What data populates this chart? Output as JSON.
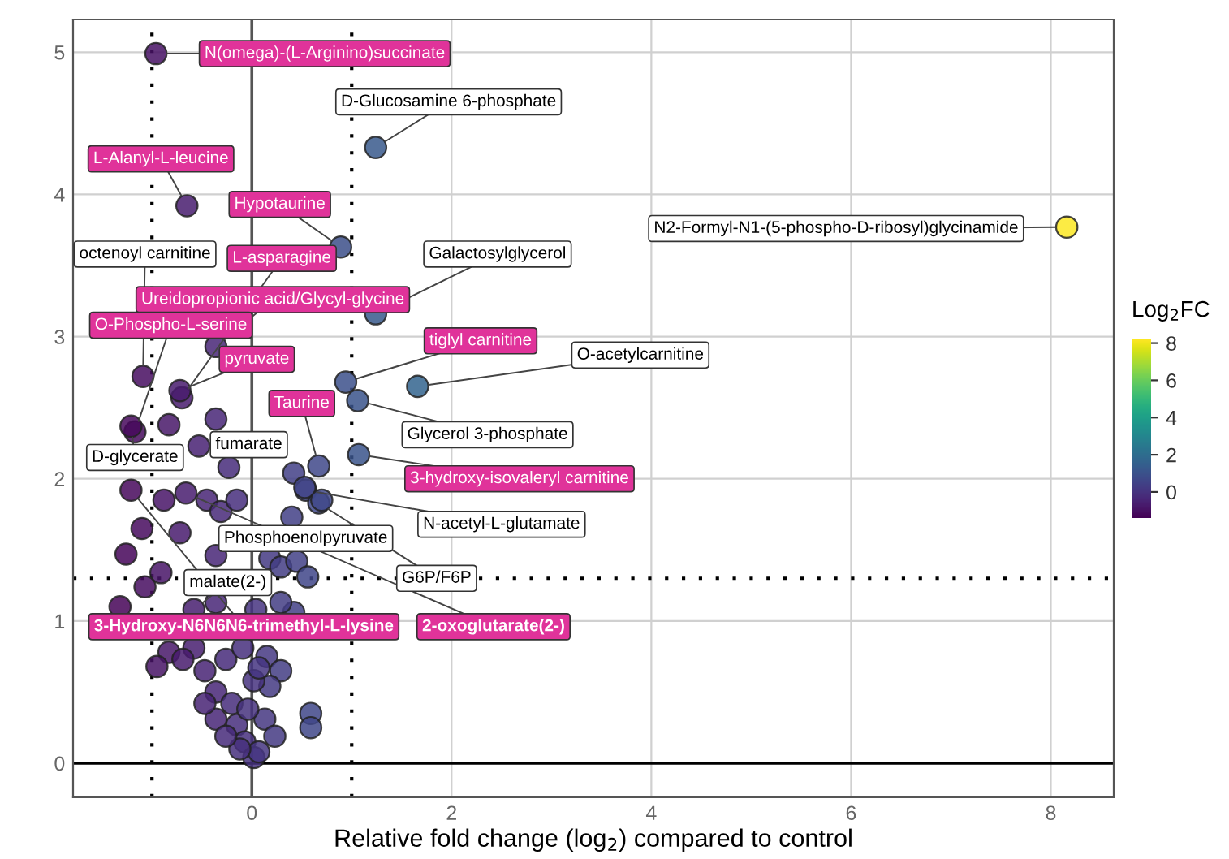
{
  "chart_data": {
    "type": "scatter",
    "xlabel": "Relative fold change (log$_{2}$) compared to control",
    "clabel": "Log$_{2}$FC",
    "xlim": [
      -1.79,
      8.63
    ],
    "ylim": [
      -0.24,
      5.23
    ],
    "xticks": [
      0,
      2,
      4,
      6,
      8
    ],
    "yticks": [
      0,
      1,
      2,
      3,
      4,
      5
    ],
    "clim": [
      -1.4,
      8.2
    ],
    "cticks": [
      0,
      2,
      4,
      6,
      8
    ],
    "grid": true,
    "marker": "circle",
    "ref_lines": [
      {
        "axis": "x",
        "value": -1,
        "line_style": "dotted",
        "color": "#000000"
      },
      {
        "axis": "x",
        "value": 1,
        "line_style": "dotted",
        "color": "#000000"
      },
      {
        "axis": "y",
        "value": 1.3,
        "line_style": "dotted",
        "color": "#000000"
      },
      {
        "axis": "x",
        "value": 0,
        "line_style": "solid",
        "color": "#555555"
      },
      {
        "axis": "y",
        "value": 0,
        "line_style": "solid",
        "color": "#000000"
      }
    ],
    "series": [
      {
        "x": [
          -0.96,
          1.24,
          -0.65,
          0.89,
          -0.7,
          -1.09,
          1.24,
          -0.36,
          -1.17,
          -0.72,
          0.94,
          1.66,
          0.67,
          1.06,
          1.07,
          0.54,
          0.67,
          -0.53,
          0.4,
          -0.58,
          -1.21,
          -0.66,
          8.16,
          -1.21,
          -1.1,
          -1.26,
          -0.91,
          -1.07,
          -1.32,
          -0.83,
          -0.95,
          -0.88,
          -0.72,
          -0.45,
          -0.31,
          -0.15,
          -0.23,
          -0.36,
          -0.83,
          0.42,
          0.53,
          0.7,
          0.18,
          0.29,
          0.45,
          0.56,
          -0.36,
          -0.36,
          0.42,
          0.29,
          -0.58,
          -0.69,
          -0.47,
          -0.26,
          -0.09,
          0.15,
          0.29,
          0.18,
          0.02,
          -0.36,
          -0.2,
          -0.36,
          -0.15,
          0.13,
          0.23,
          -0.07,
          0.02,
          0.07,
          -0.12,
          0.59,
          0.59,
          -0.26,
          -0.04,
          -0.47,
          0.07,
          0.04
        ],
        "values": [
          4.99,
          4.33,
          3.92,
          3.63,
          2.57,
          2.72,
          3.16,
          2.93,
          2.33,
          2.62,
          2.68,
          2.65,
          2.09,
          2.55,
          2.17,
          1.92,
          1.83,
          2.23,
          1.73,
          1.08,
          1.92,
          1.9,
          3.77,
          2.37,
          1.65,
          1.47,
          1.34,
          1.24,
          1.1,
          0.78,
          0.68,
          1.85,
          1.62,
          1.85,
          1.77,
          1.85,
          2.08,
          2.42,
          2.38,
          2.04,
          1.94,
          1.85,
          1.44,
          1.38,
          1.42,
          1.31,
          1.46,
          1.13,
          1.06,
          1.13,
          0.81,
          0.73,
          0.65,
          0.73,
          0.81,
          0.75,
          0.65,
          0.54,
          0.58,
          0.5,
          0.42,
          0.31,
          0.27,
          0.31,
          0.19,
          0.15,
          0.04,
          0.08,
          0.1,
          0.35,
          0.25,
          0.19,
          0.38,
          0.42,
          0.67,
          1.08
        ],
        "cvalues": [
          -0.96,
          1.24,
          -0.65,
          0.89,
          -0.7,
          -1.09,
          1.24,
          -0.36,
          -1.17,
          -0.72,
          0.94,
          1.66,
          0.67,
          1.06,
          1.07,
          0.54,
          0.67,
          -0.53,
          0.4,
          -0.58,
          -1.21,
          -0.66,
          8.16,
          -1.21,
          -1.1,
          -1.26,
          -0.91,
          -1.07,
          -1.32,
          -0.83,
          -0.95,
          -0.88,
          -0.72,
          -0.45,
          -0.31,
          -0.15,
          -0.23,
          -0.36,
          -0.83,
          0.42,
          0.53,
          0.7,
          0.18,
          0.29,
          0.45,
          0.56,
          -0.36,
          -0.36,
          0.42,
          0.29,
          -0.58,
          -0.69,
          -0.47,
          -0.26,
          -0.09,
          0.15,
          0.29,
          0.18,
          0.02,
          -0.36,
          -0.2,
          -0.36,
          -0.15,
          0.13,
          0.23,
          -0.07,
          0.02,
          0.07,
          -0.12,
          0.59,
          0.59,
          -0.26,
          -0.04,
          -0.47,
          0.07,
          0.04
        ]
      }
    ],
    "annotations": [
      {
        "text": "N(omega)-(L-Arginino)succinate",
        "x": -0.96,
        "y": 4.99
      },
      {
        "text": "D-Glucosamine 6-phosphate",
        "x": 1.24,
        "y": 4.33
      },
      {
        "text": "L-Alanyl-L-leucine",
        "x": -0.65,
        "y": 3.92
      },
      {
        "text": "Hypotaurine",
        "x": 0.89,
        "y": 3.63
      },
      {
        "text": "L-asparagine",
        "x": -0.7,
        "y": 2.57
      },
      {
        "text": "octenoyl carnitine",
        "x": -1.09,
        "y": 2.72
      },
      {
        "text": "Galactosylglycerol",
        "x": 1.24,
        "y": 3.16
      },
      {
        "text": "Ureidopropionic acid/Glycyl-glycine",
        "x": -0.36,
        "y": 2.93
      },
      {
        "text": "O-Phospho-L-serine",
        "x": -1.17,
        "y": 2.33
      },
      {
        "text": "pyruvate",
        "x": -0.72,
        "y": 2.62
      },
      {
        "text": "tiglyl carnitine",
        "x": 0.94,
        "y": 2.68
      },
      {
        "text": "O-acetylcarnitine",
        "x": 1.66,
        "y": 2.65
      },
      {
        "text": "Taurine",
        "x": 0.67,
        "y": 2.09
      },
      {
        "text": "Glycerol 3-phosphate",
        "x": 1.06,
        "y": 2.55
      },
      {
        "text": "3-hydroxy-isovaleryl carnitine",
        "x": 1.07,
        "y": 2.17
      },
      {
        "text": "N-acetyl-L-glutamate",
        "x": 0.54,
        "y": 1.92
      },
      {
        "text": "G6P/F6P",
        "x": 0.67,
        "y": 1.83
      },
      {
        "text": "fumarate",
        "x": -0.53,
        "y": 2.23
      },
      {
        "text": "Phosphoenolpyruvate",
        "x": 0.4,
        "y": 1.73
      },
      {
        "text": "malate(2-)",
        "x": -0.58,
        "y": 1.08
      },
      {
        "text": "D-glycerate",
        "x": -1.21,
        "y": 2.37
      },
      {
        "text": "3-Hydroxy-N6N6N6-trimethyl-L-lysine",
        "x": -1.21,
        "y": 1.92
      },
      {
        "text": "2-oxoglutarate(2-)",
        "x": -0.66,
        "y": 1.9
      },
      {
        "text": "N2-Formyl-N1-(5-phospho-D-ribosyl)glycinamide",
        "x": 8.16,
        "y": 3.77
      }
    ]
  }
}
